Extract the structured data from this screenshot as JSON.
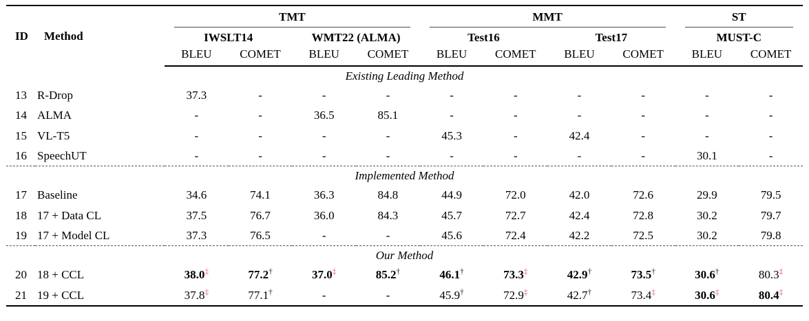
{
  "colors": {
    "marker_red": "#e25c5c",
    "rule_black": "#000000",
    "cmidrule_gray": "#4a4a4a"
  },
  "table": {
    "header": {
      "id": "ID",
      "method": "Method",
      "groups": [
        {
          "label": "TMT",
          "datasets": [
            "IWSLT14",
            "WMT22 (ALMA)"
          ]
        },
        {
          "label": "MMT",
          "datasets": [
            "Test16",
            "Test17"
          ]
        },
        {
          "label": "ST",
          "datasets": [
            "MUST-C"
          ]
        }
      ],
      "metrics": [
        "BLEU",
        "COMET"
      ]
    },
    "column_keys": [
      "iwslt14-bleu",
      "iwslt14-comet",
      "wmt22-bleu",
      "wmt22-comet",
      "test16-bleu",
      "test16-comet",
      "test17-bleu",
      "test17-comet",
      "mustc-bleu",
      "mustc-comet"
    ],
    "sections": [
      {
        "title": "Existing Leading Method",
        "rows": [
          {
            "id": "13",
            "method": "R-Drop",
            "cells": [
              {
                "value": "37.3"
              },
              {
                "value": "-"
              },
              {
                "value": "-"
              },
              {
                "value": "-"
              },
              {
                "value": "-"
              },
              {
                "value": "-"
              },
              {
                "value": "-"
              },
              {
                "value": "-"
              },
              {
                "value": "-"
              },
              {
                "value": "-"
              }
            ]
          },
          {
            "id": "14",
            "method": "ALMA",
            "cells": [
              {
                "value": "-"
              },
              {
                "value": "-"
              },
              {
                "value": "36.5"
              },
              {
                "value": "85.1"
              },
              {
                "value": "-"
              },
              {
                "value": "-"
              },
              {
                "value": "-"
              },
              {
                "value": "-"
              },
              {
                "value": "-"
              },
              {
                "value": "-"
              }
            ]
          },
          {
            "id": "15",
            "method": "VL-T5",
            "cells": [
              {
                "value": "-"
              },
              {
                "value": "-"
              },
              {
                "value": "-"
              },
              {
                "value": "-"
              },
              {
                "value": "45.3"
              },
              {
                "value": "-"
              },
              {
                "value": "42.4"
              },
              {
                "value": "-"
              },
              {
                "value": "-"
              },
              {
                "value": "-"
              }
            ]
          },
          {
            "id": "16",
            "method": "SpeechUT",
            "cells": [
              {
                "value": "-"
              },
              {
                "value": "-"
              },
              {
                "value": "-"
              },
              {
                "value": "-"
              },
              {
                "value": "-"
              },
              {
                "value": "-"
              },
              {
                "value": "-"
              },
              {
                "value": "-"
              },
              {
                "value": "30.1"
              },
              {
                "value": "-"
              }
            ]
          }
        ]
      },
      {
        "title": "Implemented Method",
        "rows": [
          {
            "id": "17",
            "method": "Baseline",
            "cells": [
              {
                "value": "34.6"
              },
              {
                "value": "74.1"
              },
              {
                "value": "36.3"
              },
              {
                "value": "84.8"
              },
              {
                "value": "44.9"
              },
              {
                "value": "72.0"
              },
              {
                "value": "42.0"
              },
              {
                "value": "72.6"
              },
              {
                "value": "29.9"
              },
              {
                "value": "79.5"
              }
            ]
          },
          {
            "id": "18",
            "method": "17 + Data CL",
            "cells": [
              {
                "value": "37.5"
              },
              {
                "value": "76.7"
              },
              {
                "value": "36.0"
              },
              {
                "value": "84.3"
              },
              {
                "value": "45.7"
              },
              {
                "value": "72.7"
              },
              {
                "value": "42.4"
              },
              {
                "value": "72.8"
              },
              {
                "value": "30.2"
              },
              {
                "value": "79.7"
              }
            ]
          },
          {
            "id": "19",
            "method": "17 + Model CL",
            "cells": [
              {
                "value": "37.3"
              },
              {
                "value": "76.5"
              },
              {
                "value": "-"
              },
              {
                "value": "-"
              },
              {
                "value": "45.6"
              },
              {
                "value": "72.4"
              },
              {
                "value": "42.2"
              },
              {
                "value": "72.5"
              },
              {
                "value": "30.2"
              },
              {
                "value": "79.8"
              }
            ]
          }
        ]
      },
      {
        "title": "Our Method",
        "rows": [
          {
            "id": "20",
            "method": "18 + CCL",
            "cells": [
              {
                "value": "38.0",
                "bold": true,
                "marker": "‡",
                "marker_color": "red"
              },
              {
                "value": "77.2",
                "bold": true,
                "marker": "†",
                "marker_color": "black"
              },
              {
                "value": "37.0",
                "bold": true,
                "marker": "‡",
                "marker_color": "red"
              },
              {
                "value": "85.2",
                "bold": true,
                "marker": "†",
                "marker_color": "black"
              },
              {
                "value": "46.1",
                "bold": true,
                "marker": "†",
                "marker_color": "black"
              },
              {
                "value": "73.3",
                "bold": true,
                "marker": "‡",
                "marker_color": "red"
              },
              {
                "value": "42.9",
                "bold": true,
                "marker": "†",
                "marker_color": "black"
              },
              {
                "value": "73.5",
                "bold": true,
                "marker": "†",
                "marker_color": "black"
              },
              {
                "value": "30.6",
                "bold": true,
                "marker": "†",
                "marker_color": "black"
              },
              {
                "value": "80.3",
                "marker": "‡",
                "marker_color": "red"
              }
            ]
          },
          {
            "id": "21",
            "method": "19 + CCL",
            "cells": [
              {
                "value": "37.8",
                "marker": "‡",
                "marker_color": "red"
              },
              {
                "value": "77.1",
                "marker": "†",
                "marker_color": "black"
              },
              {
                "value": "-"
              },
              {
                "value": "-"
              },
              {
                "value": "45.9",
                "marker": "†",
                "marker_color": "black"
              },
              {
                "value": "72.9",
                "marker": "‡",
                "marker_color": "red"
              },
              {
                "value": "42.7",
                "marker": "†",
                "marker_color": "black"
              },
              {
                "value": "73.4",
                "marker": "‡",
                "marker_color": "red"
              },
              {
                "value": "30.6",
                "bold": true,
                "marker": "‡",
                "marker_color": "red"
              },
              {
                "value": "80.4",
                "bold": true,
                "marker": "‡",
                "marker_color": "red"
              }
            ]
          }
        ]
      }
    ]
  }
}
